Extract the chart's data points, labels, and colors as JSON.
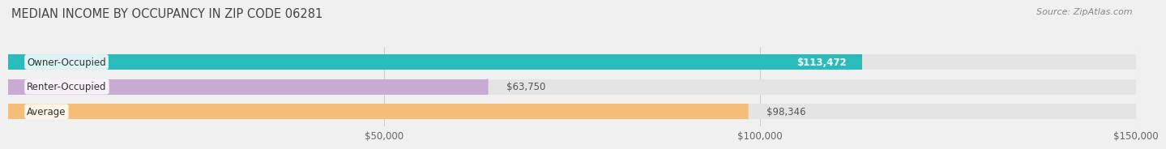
{
  "title": "MEDIAN INCOME BY OCCUPANCY IN ZIP CODE 06281",
  "source": "Source: ZipAtlas.com",
  "categories": [
    "Owner-Occupied",
    "Renter-Occupied",
    "Average"
  ],
  "values": [
    113472,
    63750,
    98346
  ],
  "labels": [
    "$113,472",
    "$63,750",
    "$98,346"
  ],
  "label_inside": [
    true,
    false,
    false
  ],
  "bar_colors": [
    "#2abcbd",
    "#c9aad2",
    "#f5be78"
  ],
  "bar_bg_color": "#e4e4e4",
  "xlim": [
    0,
    150000
  ],
  "xticks": [
    50000,
    100000,
    150000
  ],
  "xticklabels": [
    "$50,000",
    "$100,000",
    "$150,000"
  ],
  "title_fontsize": 10.5,
  "label_fontsize": 8.5,
  "tick_fontsize": 8.5,
  "source_fontsize": 8,
  "bar_height": 0.62,
  "background_color": "#f0f0f0"
}
